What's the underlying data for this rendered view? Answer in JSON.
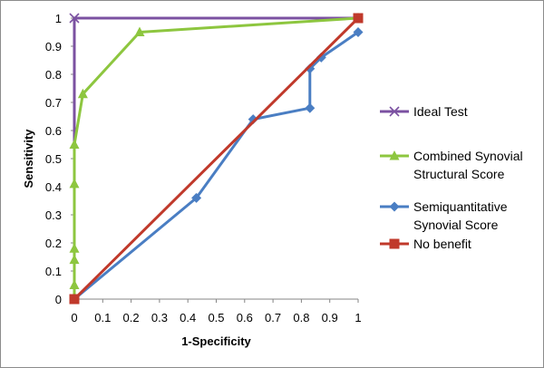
{
  "chart_data": {
    "type": "line",
    "xlabel": "1-Specificity",
    "ylabel": "Sensitivity",
    "xlim": [
      0,
      1
    ],
    "ylim": [
      0,
      1
    ],
    "xticks": [
      "0",
      "0.1",
      "0.2",
      "0.3",
      "0.4",
      "0.5",
      "0.6",
      "0.7",
      "0.8",
      "0.9",
      "1"
    ],
    "yticks": [
      "0",
      "0.1",
      "0.2",
      "0.3",
      "0.4",
      "0.5",
      "0.6",
      "0.7",
      "0.8",
      "0.9",
      "1"
    ],
    "grid": false,
    "legend_position": "right",
    "series": [
      {
        "name": "Ideal Test",
        "legend_lines": [
          "Ideal Test"
        ],
        "color": "#7b51a1",
        "marker": "x",
        "points": [
          [
            0,
            0
          ],
          [
            0,
            1
          ],
          [
            1,
            1
          ]
        ]
      },
      {
        "name": "Combined Synovial Structural Score",
        "legend_lines": [
          "Combined Synovial",
          "Structural Score"
        ],
        "color": "#8dc63f",
        "marker": "triangle",
        "points": [
          [
            0,
            0
          ],
          [
            0,
            0.05
          ],
          [
            0,
            0.14
          ],
          [
            0,
            0.18
          ],
          [
            0,
            0.41
          ],
          [
            0,
            0.55
          ],
          [
            0.03,
            0.73
          ],
          [
            0.23,
            0.95
          ],
          [
            1,
            1
          ]
        ]
      },
      {
        "name": "Semiquantitative Synovial Score",
        "legend_lines": [
          "Semiquantitative",
          "Synovial Score"
        ],
        "color": "#4a7ec3",
        "marker": "diamond",
        "points": [
          [
            0,
            0
          ],
          [
            0.43,
            0.36
          ],
          [
            0.63,
            0.64
          ],
          [
            0.83,
            0.68
          ],
          [
            0.83,
            0.82
          ],
          [
            0.87,
            0.86
          ],
          [
            1,
            0.95
          ]
        ]
      },
      {
        "name": "No benefit",
        "legend_lines": [
          "No benefit"
        ],
        "color": "#c0392b",
        "marker": "square",
        "points": [
          [
            0,
            0
          ],
          [
            1,
            1
          ]
        ]
      }
    ]
  }
}
